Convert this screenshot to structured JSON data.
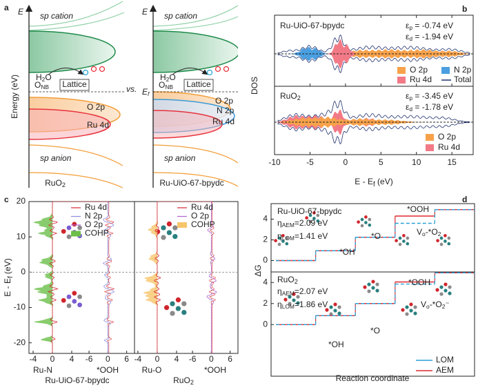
{
  "panel_labels": [
    "a",
    "b",
    "c",
    "d"
  ],
  "panel_a": {
    "ylabel": "Energy (eV)",
    "vs": "vs.",
    "left": {
      "y_axis_symbol": "E",
      "sp_cation": "sp cation",
      "sp_anion": "sp anion",
      "h2o": [
        "H",
        "2",
        "O"
      ],
      "lattice": "Lattice",
      "o_nb": [
        "O",
        "NB"
      ],
      "o2p": "O 2p",
      "ru4d": "Ru 4d",
      "caption": [
        "RuO",
        "2"
      ]
    },
    "right": {
      "y_axis_symbol": "E",
      "sp_cation": "sp cation",
      "sp_anion": "sp anion",
      "h2o": [
        "H",
        "2",
        "O"
      ],
      "lattice": "Lattice",
      "ef": [
        "E",
        "f"
      ],
      "o_nb": [
        "O",
        "NB"
      ],
      "o2p": "O 2p",
      "n2p": "N 2p",
      "ru4d": "Ru 4d",
      "caption": "Ru-UiO-67-bpydc"
    }
  },
  "panel_b": {
    "type": "area",
    "xlabel": [
      "E - E",
      "f",
      " (eV)"
    ],
    "ylabel": "DOS",
    "xlim": [
      -10,
      18
    ],
    "xticks": [
      -10,
      -5,
      0,
      5,
      10,
      15
    ],
    "subplots": [
      {
        "title": "Ru-UiO-67-bpydc",
        "eps_p": [
          "ε",
          "p",
          " = -0.74 eV"
        ],
        "eps_d": [
          "ε",
          "d",
          " = -1.94 eV"
        ],
        "legend": [
          {
            "name": "O 2p",
            "color": "#f7a24b"
          },
          {
            "name": "N 2p",
            "color": "#4a9fe0"
          },
          {
            "name": "Ru 4d",
            "color": "#f27a86"
          },
          {
            "name": "Total",
            "color": "#1f2f6e"
          }
        ]
      },
      {
        "title": [
          "RuO",
          "2"
        ],
        "eps_p": [
          "ε",
          "p",
          " = -3.45 eV"
        ],
        "eps_d": [
          "ε",
          "d",
          " = -1.78 eV"
        ],
        "legend": [
          {
            "name": "O 2p",
            "color": "#f7a24b"
          },
          {
            "name": "Ru 4d",
            "color": "#f27a86"
          }
        ]
      }
    ]
  },
  "panel_c": {
    "type": "line",
    "ylabel": [
      "E - E",
      "f",
      " (eV)"
    ],
    "ylim": [
      -23,
      20
    ],
    "yticks": [
      -20,
      -10,
      0,
      10,
      20
    ],
    "left": {
      "xlim_cohp": [
        -5,
        6
      ],
      "xticks_cohp": [
        -4,
        0,
        4
      ],
      "xlim_ooh": [
        -8,
        8.5
      ],
      "xticks_ooh": [
        -6,
        0,
        6
      ],
      "label_cohp": "Ru-N",
      "label_ooh": "*OOH",
      "caption": "Ru-UiO-67-bpydc",
      "color": "#3ea0e6",
      "legend": [
        {
          "name": "Ru 4d",
          "color": "#d8262e"
        },
        {
          "name": "N 2p",
          "color": "#8a8ae0"
        },
        {
          "name": "O 2p",
          "color": "#b060d0"
        },
        {
          "name": "COHP",
          "color": "#6cbf4a"
        }
      ]
    },
    "right": {
      "xlim_cohp": [
        -4.7,
        6
      ],
      "xticks_cohp": [
        -4,
        0,
        4
      ],
      "xlim_ooh": [
        -8,
        8.5
      ],
      "xticks_ooh": [
        -6,
        0,
        6
      ],
      "label_cohp": "Ru-O",
      "label_ooh": "*OOH",
      "caption": [
        "RuO",
        "2"
      ],
      "color": "#f08a00",
      "legend": [
        {
          "name": "Ru 4d",
          "color": "#d8262e"
        },
        {
          "name": "O 2p",
          "color": "#b060d0"
        },
        {
          "name": "COHP",
          "color": "#f7c56b"
        }
      ]
    }
  },
  "panel_d": {
    "type": "step",
    "ylabel": "ΔG",
    "xlabel": "Reaction coordinate",
    "series": [
      {
        "name": "LOM",
        "color": "#2a9fd6"
      },
      {
        "name": "AEM",
        "color": "#e0282e"
      }
    ],
    "subplots": [
      {
        "title": "Ru-UiO-67-bpydc",
        "eta_aem": [
          "η",
          "AEM",
          "=2.09 eV"
        ],
        "eta_lom": [
          "η",
          "LOM",
          "=1.41 eV"
        ],
        "ylim": [
          -1.1,
          5.5
        ],
        "yticks": [
          0,
          2,
          4
        ],
        "steps": [
          "*OH",
          "*O",
          "*OOH",
          [
            "V",
            "o",
            "-*O",
            "2"
          ]
        ],
        "values": [
          [
            0,
            0.95,
            2.25,
            3.6,
            4.92
          ],
          [
            0,
            0.95,
            2.25,
            4.3,
            4.92
          ]
        ]
      },
      {
        "title": [
          "RuO",
          "2"
        ],
        "eta_aem": [
          "η",
          "AEM",
          "=2.07 eV"
        ],
        "eta_lom": [
          "η",
          "LOM",
          "=1.86 eV"
        ],
        "ylim": [
          -4.9,
          5
        ],
        "yticks": [
          0,
          2,
          4
        ],
        "steps": [
          "*OH",
          "*O",
          "*OOH",
          [
            "V",
            "o",
            "-*O",
            "2",
            "⁻"
          ]
        ],
        "values": [
          [
            0,
            0.85,
            2,
            3.85,
            4.92
          ],
          [
            0,
            0.85,
            2,
            4.05,
            4.92
          ]
        ]
      }
    ]
  }
}
